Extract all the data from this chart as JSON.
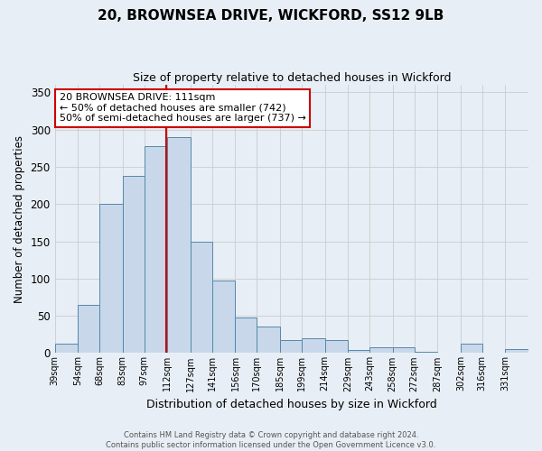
{
  "title": "20, BROWNSEA DRIVE, WICKFORD, SS12 9LB",
  "subtitle": "Size of property relative to detached houses in Wickford",
  "xlabel": "Distribution of detached houses by size in Wickford",
  "ylabel": "Number of detached properties",
  "bin_labels": [
    "39sqm",
    "54sqm",
    "68sqm",
    "83sqm",
    "97sqm",
    "112sqm",
    "127sqm",
    "141sqm",
    "156sqm",
    "170sqm",
    "185sqm",
    "199sqm",
    "214sqm",
    "229sqm",
    "243sqm",
    "258sqm",
    "272sqm",
    "287sqm",
    "302sqm",
    "316sqm",
    "331sqm"
  ],
  "bin_edges": [
    39,
    54,
    68,
    83,
    97,
    112,
    127,
    141,
    156,
    170,
    185,
    199,
    214,
    229,
    243,
    258,
    272,
    287,
    302,
    316,
    331,
    346
  ],
  "bar_heights": [
    12,
    65,
    200,
    238,
    278,
    290,
    150,
    97,
    48,
    35,
    18,
    20,
    18,
    4,
    8,
    8,
    2,
    0,
    12,
    0,
    5
  ],
  "bar_color": "#c8d8ea",
  "bar_edgecolor": "#5588aa",
  "vline_x": 111,
  "vline_color": "#cc0000",
  "annotation_text": "20 BROWNSEA DRIVE: 111sqm\n← 50% of detached houses are smaller (742)\n50% of semi-detached houses are larger (737) →",
  "annotation_box_edgecolor": "#cc0000",
  "ylim": [
    0,
    360
  ],
  "yticks": [
    0,
    50,
    100,
    150,
    200,
    250,
    300,
    350
  ],
  "grid_color": "#cccccc",
  "background_color": "#e8eef5",
  "footer_line1": "Contains HM Land Registry data © Crown copyright and database right 2024.",
  "footer_line2": "Contains public sector information licensed under the Open Government Licence v3.0."
}
